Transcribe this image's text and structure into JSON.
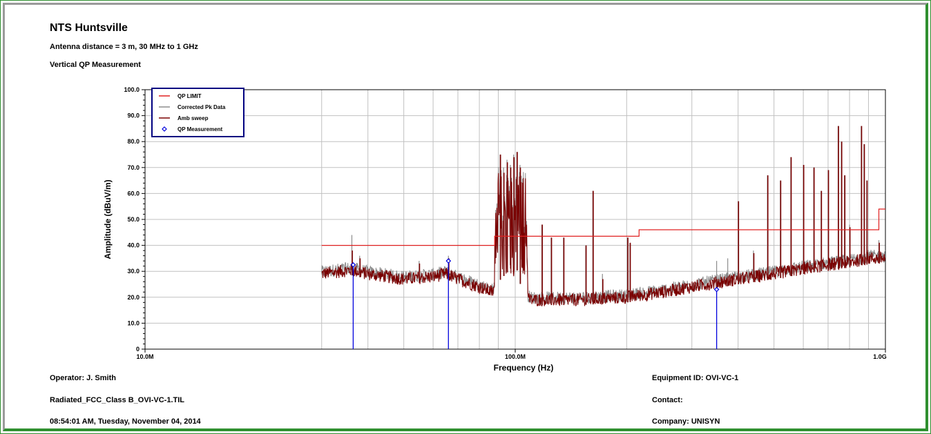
{
  "header": {
    "title": "NTS Huntsville",
    "subtitle1": "Antenna distance = 3 m, 30 MHz to 1 GHz",
    "subtitle2": "Vertical QP Measurement"
  },
  "footer": {
    "operator": "Operator: J. Smith",
    "file": "Radiated_FCC_Class B_OVI-VC-1.TIL",
    "datetime": "08:54:01 AM, Tuesday, November 04, 2014",
    "equipment": "Equipment ID: OVI-VC-1",
    "contact": "Contact:",
    "company": "Company: UNISYN"
  },
  "colors": {
    "qp_limit": "#e02020",
    "corrected_pk": "#8c8c8c",
    "amb_sweep": "#7a0000",
    "qp_measurement": "#0000dd",
    "grid": "#c0c0c0",
    "legend_border": "#000080"
  },
  "chart_data": {
    "type": "line",
    "xscale": "log",
    "xlabel": "Frequency (Hz)",
    "ylabel": "Amplitude (dBuV/m)",
    "xlim": [
      10000000,
      1000000000
    ],
    "ylim": [
      0,
      100
    ],
    "x_ticks": [
      {
        "value": 10000000,
        "label": "10.0M"
      },
      {
        "value": 100000000,
        "label": "100.0M"
      },
      {
        "value": 1000000000,
        "label": "1.0G"
      }
    ],
    "y_ticks": [
      {
        "value": 0,
        "label": "0"
      },
      {
        "value": 10,
        "label": "10.0"
      },
      {
        "value": 20,
        "label": "20.0"
      },
      {
        "value": 30,
        "label": "30.0"
      },
      {
        "value": 40,
        "label": "40.0"
      },
      {
        "value": 50,
        "label": "50.0"
      },
      {
        "value": 60,
        "label": "60.0"
      },
      {
        "value": 70,
        "label": "70.0"
      },
      {
        "value": 80,
        "label": "80.0"
      },
      {
        "value": 90,
        "label": "90.0"
      },
      {
        "value": 100,
        "label": "100.0"
      }
    ],
    "grid": true,
    "legend_position": "top-left",
    "legend": [
      {
        "label": "QP LIMIT",
        "style": "line",
        "color": "#e02020"
      },
      {
        "label": "Corrected Pk Data",
        "style": "line",
        "color": "#8c8c8c"
      },
      {
        "label": "Amb sweep",
        "style": "line",
        "color": "#7a0000"
      },
      {
        "label": "QP Measurement",
        "style": "marker",
        "color": "#0000dd"
      }
    ],
    "qp_limit": [
      [
        30000000,
        40
      ],
      [
        88000000,
        40
      ],
      [
        88000000,
        43.5
      ],
      [
        216000000,
        43.5
      ],
      [
        216000000,
        46
      ],
      [
        960000000,
        46
      ],
      [
        960000000,
        54
      ],
      [
        1000000000,
        54
      ]
    ],
    "qp_measurement": [
      {
        "freq": 36500000,
        "value": 32.5
      },
      {
        "freq": 66000000,
        "value": 34.0
      },
      {
        "freq": 350000000,
        "value": 23.0
      }
    ],
    "baseline": [
      [
        30000000,
        29
      ],
      [
        36000000,
        30.5
      ],
      [
        40000000,
        29
      ],
      [
        50000000,
        27
      ],
      [
        60000000,
        28
      ],
      [
        65000000,
        29
      ],
      [
        70000000,
        27
      ],
      [
        80000000,
        24
      ],
      [
        87000000,
        22
      ],
      [
        90000000,
        28
      ],
      [
        100000000,
        35
      ],
      [
        105000000,
        22
      ],
      [
        110000000,
        19
      ],
      [
        150000000,
        19
      ],
      [
        200000000,
        20
      ],
      [
        250000000,
        22
      ],
      [
        300000000,
        24
      ],
      [
        400000000,
        27
      ],
      [
        500000000,
        29
      ],
      [
        600000000,
        31
      ],
      [
        700000000,
        32.5
      ],
      [
        800000000,
        33.5
      ],
      [
        900000000,
        35
      ],
      [
        1000000000,
        35
      ]
    ],
    "spikes": [
      {
        "freq": 36200000,
        "amb": 38,
        "pk": 44
      },
      {
        "freq": 38000000,
        "amb": 35,
        "pk": 36
      },
      {
        "freq": 55000000,
        "amb": 33,
        "pk": 34
      },
      {
        "freq": 66000000,
        "amb": 35,
        "pk": 36
      },
      {
        "freq": 91000000,
        "amb": 75,
        "pk": 75
      },
      {
        "freq": 93000000,
        "amb": 68,
        "pk": 70
      },
      {
        "freq": 95000000,
        "amb": 72,
        "pk": 73
      },
      {
        "freq": 97000000,
        "amb": 70,
        "pk": 71
      },
      {
        "freq": 99000000,
        "amb": 74,
        "pk": 75
      },
      {
        "freq": 101000000,
        "amb": 76,
        "pk": 76
      },
      {
        "freq": 103000000,
        "amb": 70,
        "pk": 71
      },
      {
        "freq": 118000000,
        "amb": 48,
        "pk": 48
      },
      {
        "freq": 125000000,
        "amb": 43,
        "pk": 43
      },
      {
        "freq": 135000000,
        "amb": 43,
        "pk": 43
      },
      {
        "freq": 155000000,
        "amb": 40,
        "pk": 40
      },
      {
        "freq": 162000000,
        "amb": 61,
        "pk": 61
      },
      {
        "freq": 172000000,
        "amb": 27,
        "pk": 29
      },
      {
        "freq": 201000000,
        "amb": 43,
        "pk": 43
      },
      {
        "freq": 204000000,
        "amb": 41,
        "pk": 41
      },
      {
        "freq": 350000000,
        "amb": 27,
        "pk": 34
      },
      {
        "freq": 375000000,
        "amb": 28,
        "pk": 35
      },
      {
        "freq": 400000000,
        "amb": 57,
        "pk": 57
      },
      {
        "freq": 440000000,
        "amb": 37,
        "pk": 38
      },
      {
        "freq": 480000000,
        "amb": 67,
        "pk": 67
      },
      {
        "freq": 520000000,
        "amb": 65,
        "pk": 65
      },
      {
        "freq": 555000000,
        "amb": 74,
        "pk": 74
      },
      {
        "freq": 600000000,
        "amb": 71,
        "pk": 71
      },
      {
        "freq": 640000000,
        "amb": 70,
        "pk": 70
      },
      {
        "freq": 670000000,
        "amb": 61,
        "pk": 61
      },
      {
        "freq": 700000000,
        "amb": 69,
        "pk": 69
      },
      {
        "freq": 745000000,
        "amb": 86,
        "pk": 86
      },
      {
        "freq": 760000000,
        "amb": 80,
        "pk": 80
      },
      {
        "freq": 775000000,
        "amb": 67,
        "pk": 67
      },
      {
        "freq": 800000000,
        "amb": 47,
        "pk": 48
      },
      {
        "freq": 860000000,
        "amb": 86,
        "pk": 86
      },
      {
        "freq": 875000000,
        "amb": 79,
        "pk": 79
      },
      {
        "freq": 890000000,
        "amb": 65,
        "pk": 65
      },
      {
        "freq": 960000000,
        "amb": 41,
        "pk": 42
      }
    ]
  }
}
